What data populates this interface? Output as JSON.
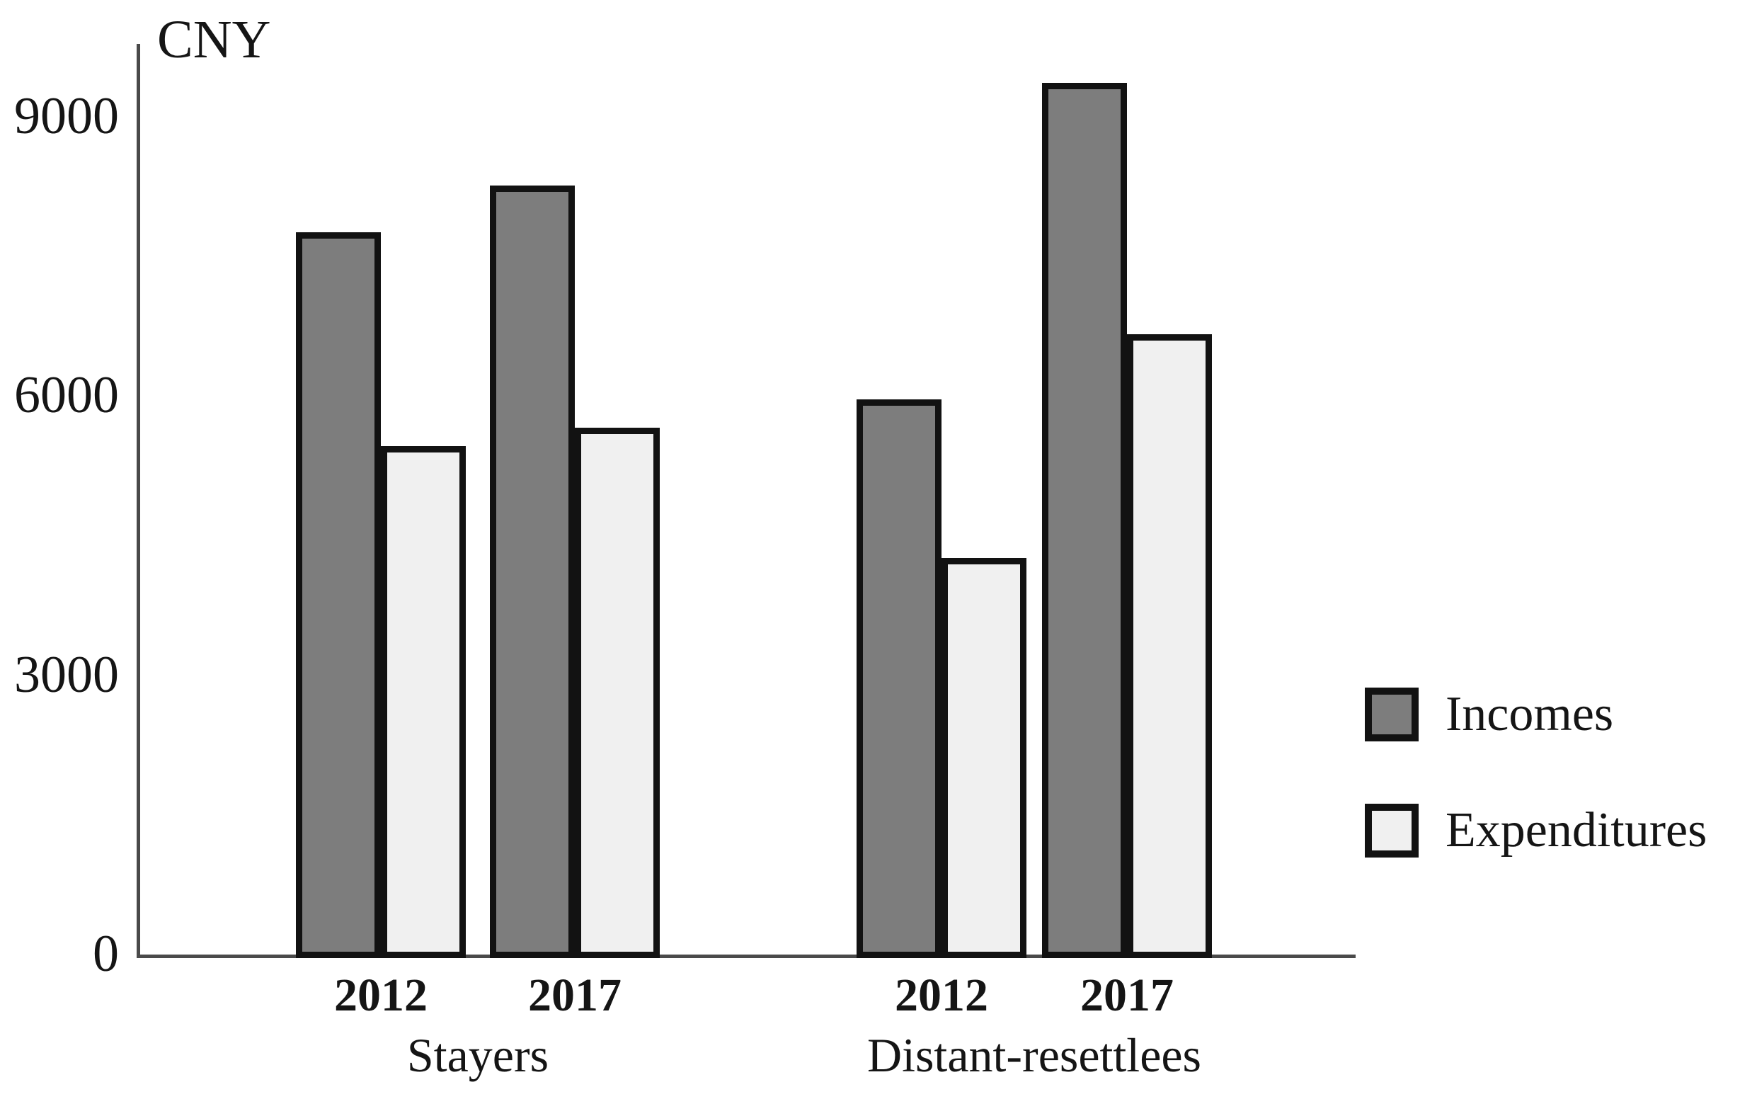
{
  "chart_data": {
    "type": "bar",
    "title": "",
    "y_axis_title": "CNY",
    "y_ticks": [
      9000,
      6000,
      3000,
      0
    ],
    "ylim": [
      0,
      9700
    ],
    "grid": false,
    "legend_position": "right",
    "series": [
      {
        "name": "Incomes",
        "color": "#7d7d7d"
      },
      {
        "name": "Expenditures",
        "color": "#f0f0f0"
      }
    ],
    "groups": [
      {
        "label": "Stayers",
        "years": [
          {
            "label": "2012",
            "values": {
              "Incomes": 7800,
              "Expenditures": 5500
            }
          },
          {
            "label": "2017",
            "values": {
              "Incomes": 8300,
              "Expenditures": 5700
            }
          }
        ]
      },
      {
        "label": "Distant-resettlees",
        "years": [
          {
            "label": "2012",
            "values": {
              "Incomes": 6000,
              "Expenditures": 4300
            }
          },
          {
            "label": "2017",
            "values": {
              "Incomes": 9400,
              "Expenditures": 6700
            }
          }
        ]
      }
    ]
  }
}
